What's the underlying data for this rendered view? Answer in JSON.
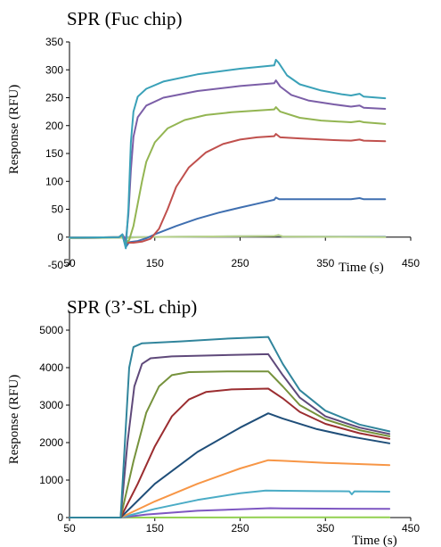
{
  "chart_data": [
    {
      "type": "line",
      "title": "SPR (Fuc chip)",
      "xlabel": "Time (s)",
      "ylabel": "Response (RFU)",
      "xlim": [
        50,
        450
      ],
      "ylim": [
        -50,
        350
      ],
      "xticks": [
        "50",
        "150",
        "250",
        "350",
        "450"
      ],
      "yticks": [
        "-50",
        "0",
        "50",
        "100",
        "150",
        "200",
        "250",
        "300",
        "350"
      ],
      "legend": "none",
      "grid": false,
      "series": [
        {
          "color": "#8aa9c8",
          "points": [
            [
              50,
              -2
            ],
            [
              110,
              -1
            ],
            [
              115,
              0
            ],
            [
              130,
              0
            ],
            [
              200,
              1
            ],
            [
              290,
              2
            ],
            [
              295,
              3
            ],
            [
              300,
              1
            ],
            [
              420,
              1
            ]
          ]
        },
        {
          "color": "#b8d28a",
          "points": [
            [
              50,
              -2
            ],
            [
              110,
              -1
            ],
            [
              115,
              -2
            ],
            [
              130,
              0
            ],
            [
              200,
              1
            ],
            [
              290,
              2
            ],
            [
              295,
              4
            ],
            [
              300,
              1
            ],
            [
              420,
              0
            ]
          ]
        },
        {
          "color": "#3f6fb0",
          "points": [
            [
              50,
              -1
            ],
            [
              108,
              0
            ],
            [
              112,
              4
            ],
            [
              116,
              -18
            ],
            [
              120,
              -9
            ],
            [
              130,
              -7
            ],
            [
              140,
              -2
            ],
            [
              150,
              5
            ],
            [
              175,
              20
            ],
            [
              200,
              33
            ],
            [
              225,
              44
            ],
            [
              250,
              53
            ],
            [
              270,
              60
            ],
            [
              290,
              67
            ],
            [
              292,
              71
            ],
            [
              296,
              68
            ],
            [
              320,
              68
            ],
            [
              380,
              68
            ],
            [
              390,
              70
            ],
            [
              395,
              68
            ],
            [
              420,
              68
            ]
          ]
        },
        {
          "color": "#c0504d",
          "points": [
            [
              50,
              -1
            ],
            [
              108,
              0
            ],
            [
              112,
              3
            ],
            [
              116,
              -10
            ],
            [
              125,
              -10
            ],
            [
              135,
              -8
            ],
            [
              145,
              -3
            ],
            [
              155,
              15
            ],
            [
              165,
              50
            ],
            [
              175,
              90
            ],
            [
              190,
              125
            ],
            [
              210,
              152
            ],
            [
              230,
              167
            ],
            [
              250,
              175
            ],
            [
              270,
              179
            ],
            [
              290,
              181
            ],
            [
              292,
              185
            ],
            [
              297,
              179
            ],
            [
              320,
              177
            ],
            [
              360,
              174
            ],
            [
              380,
              173
            ],
            [
              390,
              175
            ],
            [
              395,
              173
            ],
            [
              420,
              172
            ]
          ]
        },
        {
          "color": "#93b552",
          "points": [
            [
              50,
              -1
            ],
            [
              108,
              0
            ],
            [
              112,
              3
            ],
            [
              116,
              -10
            ],
            [
              120,
              -5
            ],
            [
              125,
              20
            ],
            [
              130,
              60
            ],
            [
              135,
              100
            ],
            [
              140,
              135
            ],
            [
              150,
              170
            ],
            [
              165,
              195
            ],
            [
              185,
              210
            ],
            [
              210,
              219
            ],
            [
              240,
              224
            ],
            [
              270,
              227
            ],
            [
              290,
              229
            ],
            [
              292,
              233
            ],
            [
              297,
              225
            ],
            [
              320,
              214
            ],
            [
              345,
              209
            ],
            [
              380,
              206
            ],
            [
              390,
              208
            ],
            [
              395,
              206
            ],
            [
              420,
              203
            ]
          ]
        },
        {
          "color": "#7b5ea7",
          "points": [
            [
              50,
              -1
            ],
            [
              108,
              0
            ],
            [
              112,
              5
            ],
            [
              116,
              -6
            ],
            [
              119,
              40
            ],
            [
              122,
              120
            ],
            [
              125,
              180
            ],
            [
              130,
              215
            ],
            [
              140,
              236
            ],
            [
              160,
              250
            ],
            [
              200,
              262
            ],
            [
              250,
              271
            ],
            [
              290,
              276
            ],
            [
              292,
              281
            ],
            [
              297,
              270
            ],
            [
              310,
              255
            ],
            [
              330,
              245
            ],
            [
              360,
              238
            ],
            [
              380,
              234
            ],
            [
              390,
              236
            ],
            [
              395,
              232
            ],
            [
              420,
              230
            ]
          ]
        },
        {
          "color": "#3aa1b8",
          "points": [
            [
              50,
              -1
            ],
            [
              108,
              0
            ],
            [
              112,
              5
            ],
            [
              116,
              -20
            ],
            [
              119,
              50
            ],
            [
              122,
              170
            ],
            [
              125,
              225
            ],
            [
              130,
              252
            ],
            [
              140,
              266
            ],
            [
              160,
              279
            ],
            [
              200,
              292
            ],
            [
              250,
              302
            ],
            [
              290,
              308
            ],
            [
              292,
              318
            ],
            [
              295,
              313
            ],
            [
              305,
              290
            ],
            [
              320,
              274
            ],
            [
              345,
              263
            ],
            [
              370,
              256
            ],
            [
              380,
              254
            ],
            [
              390,
              257
            ],
            [
              395,
              252
            ],
            [
              420,
              249
            ]
          ]
        }
      ]
    },
    {
      "type": "line",
      "title": "SPR (3’-SL chip)",
      "xlabel": "Time (s)",
      "ylabel": "Response (RFU)",
      "xlim": [
        50,
        450
      ],
      "ylim": [
        0,
        5500
      ],
      "xticks": [
        "50",
        "150",
        "250",
        "350",
        "450"
      ],
      "yticks": [
        "0",
        "1000",
        "2000",
        "3000",
        "4000",
        "5000"
      ],
      "legend": "none",
      "grid": false,
      "series": [
        {
          "color": "#92d050",
          "points": [
            [
              50,
              0
            ],
            [
              110,
              0
            ],
            [
              280,
              5
            ],
            [
              425,
              5
            ]
          ]
        },
        {
          "color": "#7e57c2",
          "points": [
            [
              50,
              0
            ],
            [
              110,
              0
            ],
            [
              140,
              80
            ],
            [
              200,
              180
            ],
            [
              285,
              250
            ],
            [
              300,
              245
            ],
            [
              350,
              238
            ],
            [
              425,
              230
            ]
          ]
        },
        {
          "color": "#4bacc6",
          "points": [
            [
              50,
              0
            ],
            [
              110,
              0
            ],
            [
              150,
              230
            ],
            [
              200,
              470
            ],
            [
              250,
              650
            ],
            [
              280,
              720
            ],
            [
              300,
              715
            ],
            [
              340,
              705
            ],
            [
              378,
              700
            ],
            [
              381,
              620
            ],
            [
              384,
              700
            ],
            [
              425,
              690
            ]
          ]
        },
        {
          "color": "#f79646",
          "points": [
            [
              50,
              0
            ],
            [
              110,
              0
            ],
            [
              150,
              430
            ],
            [
              200,
              900
            ],
            [
              250,
              1310
            ],
            [
              283,
              1530
            ],
            [
              300,
              1515
            ],
            [
              350,
              1460
            ],
            [
              425,
              1400
            ]
          ]
        },
        {
          "color": "#1f4e79",
          "points": [
            [
              50,
              0
            ],
            [
              110,
              0
            ],
            [
              150,
              900
            ],
            [
              200,
              1750
            ],
            [
              250,
              2400
            ],
            [
              283,
              2780
            ],
            [
              300,
              2640
            ],
            [
              340,
              2360
            ],
            [
              380,
              2160
            ],
            [
              425,
              1980
            ]
          ]
        },
        {
          "color": "#9b2d30",
          "points": [
            [
              50,
              0
            ],
            [
              110,
              0
            ],
            [
              130,
              900
            ],
            [
              150,
              1900
            ],
            [
              170,
              2700
            ],
            [
              190,
              3150
            ],
            [
              210,
              3350
            ],
            [
              240,
              3420
            ],
            [
              283,
              3440
            ],
            [
              300,
              3180
            ],
            [
              320,
              2820
            ],
            [
              350,
              2500
            ],
            [
              390,
              2250
            ],
            [
              425,
              2100
            ]
          ]
        },
        {
          "color": "#76923c",
          "points": [
            [
              50,
              0
            ],
            [
              110,
              0
            ],
            [
              125,
              1500
            ],
            [
              140,
              2800
            ],
            [
              155,
              3500
            ],
            [
              170,
              3800
            ],
            [
              190,
              3880
            ],
            [
              240,
              3900
            ],
            [
              283,
              3900
            ],
            [
              300,
              3500
            ],
            [
              320,
              3000
            ],
            [
              350,
              2620
            ],
            [
              390,
              2330
            ],
            [
              425,
              2170
            ]
          ]
        },
        {
          "color": "#5f497a",
          "points": [
            [
              50,
              0
            ],
            [
              110,
              0
            ],
            [
              118,
              2000
            ],
            [
              126,
              3500
            ],
            [
              135,
              4100
            ],
            [
              145,
              4250
            ],
            [
              170,
              4300
            ],
            [
              240,
              4340
            ],
            [
              283,
              4360
            ],
            [
              300,
              3800
            ],
            [
              320,
              3200
            ],
            [
              350,
              2700
            ],
            [
              390,
              2400
            ],
            [
              425,
              2230
            ]
          ]
        },
        {
          "color": "#31859c",
          "points": [
            [
              50,
              0
            ],
            [
              110,
              0
            ],
            [
              115,
              2000
            ],
            [
              120,
              4000
            ],
            [
              125,
              4550
            ],
            [
              135,
              4650
            ],
            [
              180,
              4700
            ],
            [
              240,
              4780
            ],
            [
              283,
              4820
            ],
            [
              300,
              4100
            ],
            [
              320,
              3400
            ],
            [
              350,
              2850
            ],
            [
              390,
              2480
            ],
            [
              425,
              2300
            ]
          ]
        }
      ]
    }
  ]
}
